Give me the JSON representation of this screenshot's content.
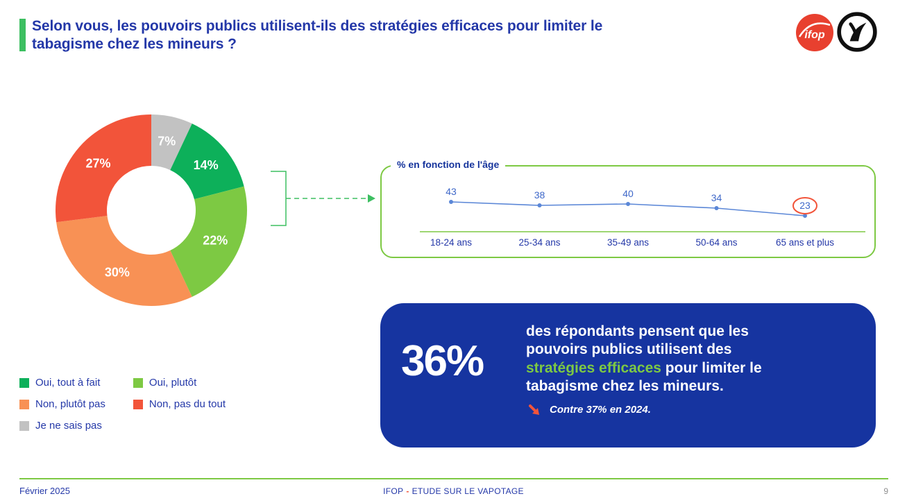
{
  "page": {
    "title_line1": "Selon vous, les pouvoirs publics utilisent-ils des stratégies efficaces pour limiter le",
    "title_line2": "tabagisme chez les mineurs ?",
    "accent_color": "#3dbf61",
    "title_color": "#2438a8"
  },
  "logos": {
    "ifop_label": "ifop",
    "ifop_bg": "#e8402f"
  },
  "chart_data": [
    {
      "type": "pie",
      "subtype": "donut",
      "value_suffix": "%",
      "start_angle_deg": 0,
      "direction": "clockwise",
      "segments": [
        {
          "label": "Je ne sais pas",
          "value": 7,
          "color": "#c2c2c2"
        },
        {
          "label": "Oui, tout à fait",
          "value": 14,
          "color": "#0db05a"
        },
        {
          "label": "Oui, plutôt",
          "value": 22,
          "color": "#7dc943"
        },
        {
          "label": "Non, plutôt pas",
          "value": 30,
          "color": "#f89155"
        },
        {
          "label": "Non, pas du tout",
          "value": 27,
          "color": "#f2543a"
        }
      ]
    },
    {
      "type": "line",
      "title": "% en fonction de l'âge",
      "categories": [
        "18-24 ans",
        "25-34 ans",
        "35-49 ans",
        "50-64 ans",
        "65 ans et plus"
      ],
      "values": [
        43,
        38,
        40,
        34,
        23
      ],
      "highlight_index": 4,
      "line_color": "#5b87d7",
      "axis_color": "#7dc943",
      "value_label_color": "#3f68c9",
      "category_label_color": "#2438a8",
      "highlight_color": "#f2543a",
      "border_color": "#7dc943",
      "grid": false,
      "ylim": [
        0,
        50
      ]
    }
  ],
  "legend": {
    "columns": [
      [
        "Oui, tout à fait",
        "Non, plutôt pas",
        "Je ne sais pas"
      ],
      [
        "Oui, plutôt",
        "Non, pas du tout"
      ]
    ],
    "label_color": "#2438a8"
  },
  "callout": {
    "stat": "36%",
    "lines": [
      {
        "text": "des répondants pensent que les"
      },
      {
        "text": "pouvoirs publics utilisent des"
      },
      {
        "highlight": "stratégies efficaces",
        "text": " pour limiter le"
      },
      {
        "text": "tabagisme chez les mineurs."
      }
    ],
    "note": "Contre 37% en 2024.",
    "bg_color": "#1634a0",
    "highlight_color": "#7dc943",
    "arrow_color": "#f2543a"
  },
  "footer": {
    "date": "Février 2025",
    "center_brand": "IFOP",
    "center_separator": "-",
    "center_text": "ETUDE SUR LE VAPOTAGE",
    "page_number": "9"
  }
}
